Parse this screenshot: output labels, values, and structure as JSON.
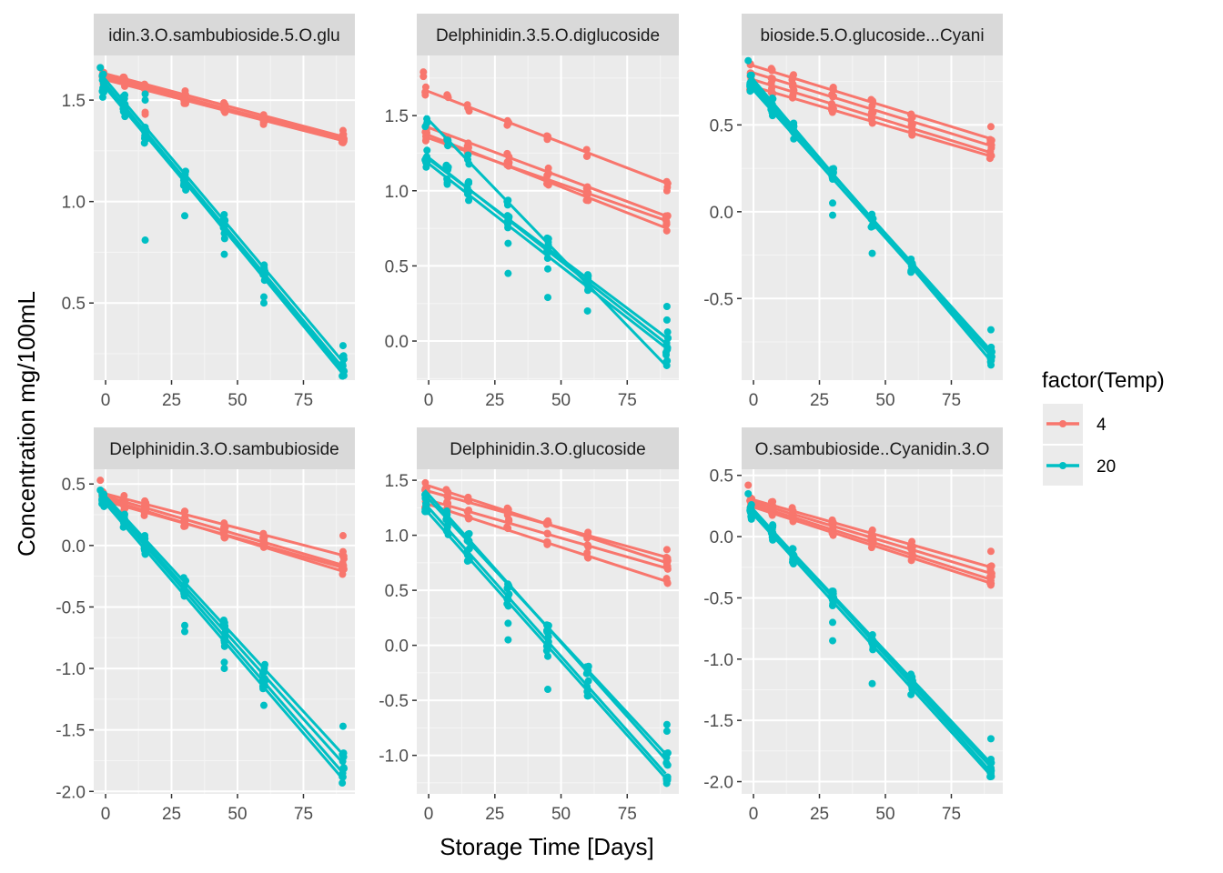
{
  "chart_data": {
    "type": "scatter",
    "xlabel": "Storage Time [Days]",
    "ylabel": "Concentration mg/100mL",
    "x_days": [
      0,
      7,
      15,
      30,
      45,
      60,
      90
    ],
    "x_ticks": [
      0,
      25,
      50,
      75
    ],
    "legend": {
      "title": "factor(Temp)",
      "placement": "right",
      "entries": [
        {
          "label": "4",
          "color": "#F8766D"
        },
        {
          "label": "20",
          "color": "#00BFC4"
        }
      ]
    },
    "grid": true,
    "panels": [
      {
        "strip": "idin.3.O.sambubioside.5.O.glu",
        "ylim": [
          0.12,
          1.72
        ],
        "yticks": [
          {
            "v": 0.5,
            "label": "0.5"
          },
          {
            "v": 1.0,
            "label": "1.0"
          },
          {
            "v": 1.5,
            "label": "1.5"
          }
        ],
        "series": [
          {
            "temp": "4",
            "reps": [
              [
                1.62,
                1.3
              ],
              [
                1.61,
                1.31
              ],
              [
                1.6,
                1.3
              ],
              [
                1.63,
                1.32
              ]
            ],
            "jitter": 0.02,
            "extra": [
              [
                15,
                1.43
              ],
              [
                15,
                1.44
              ],
              [
                -2,
                1.66
              ],
              [
                90,
                1.35
              ]
            ]
          },
          {
            "temp": "20",
            "reps": [
              [
                1.58,
                0.18
              ],
              [
                1.56,
                0.17
              ],
              [
                1.6,
                0.21
              ],
              [
                1.57,
                0.15
              ]
            ],
            "jitter": 0.05,
            "extra": [
              [
                15,
                0.81
              ],
              [
                15,
                1.5
              ],
              [
                15,
                1.53
              ],
              [
                -2,
                1.66
              ],
              [
                30,
                0.93
              ],
              [
                45,
                0.74
              ],
              [
                60,
                0.5
              ],
              [
                60,
                0.53
              ],
              [
                90,
                0.29
              ]
            ]
          }
        ]
      },
      {
        "strip": "Delphinidin.3.5.O.diglucoside",
        "ylim": [
          -0.26,
          1.9
        ],
        "yticks": [
          {
            "v": 0.0,
            "label": "0.0"
          },
          {
            "v": 0.5,
            "label": "0.5"
          },
          {
            "v": 1.0,
            "label": "1.0"
          },
          {
            "v": 1.5,
            "label": "1.5"
          }
        ],
        "series": [
          {
            "temp": "4",
            "reps": [
              [
                1.66,
                1.05
              ],
              [
                1.42,
                0.83
              ],
              [
                1.37,
                0.75
              ],
              [
                1.35,
                0.8
              ]
            ],
            "jitter": 0.03,
            "extra": [
              [
                -2,
                1.76
              ],
              [
                -2,
                1.79
              ],
              [
                90,
                1.0
              ]
            ]
          },
          {
            "temp": "20",
            "reps": [
              [
                1.47,
                -0.17
              ],
              [
                1.21,
                0.02
              ],
              [
                1.22,
                -0.02
              ],
              [
                1.18,
                -0.05
              ]
            ],
            "jitter": 0.05,
            "extra": [
              [
                30,
                0.45
              ],
              [
                30,
                0.65
              ],
              [
                45,
                0.29
              ],
              [
                45,
                0.48
              ],
              [
                60,
                0.2
              ],
              [
                90,
                0.14
              ],
              [
                90,
                0.23
              ]
            ]
          }
        ]
      },
      {
        "strip": "bioside.5.O.glucoside...Cyani",
        "ylim": [
          -0.97,
          0.9
        ],
        "yticks": [
          {
            "v": -0.5,
            "label": "-0.5"
          },
          {
            "v": 0.0,
            "label": "0.0"
          },
          {
            "v": 0.5,
            "label": "0.5"
          }
        ],
        "series": [
          {
            "temp": "4",
            "reps": [
              [
                0.84,
                0.42
              ],
              [
                0.8,
                0.38
              ],
              [
                0.76,
                0.34
              ],
              [
                0.72,
                0.32
              ]
            ],
            "jitter": 0.02,
            "extra": [
              [
                90,
                0.49
              ]
            ]
          },
          {
            "temp": "20",
            "reps": [
              [
                0.76,
                -0.86
              ],
              [
                0.74,
                -0.82
              ],
              [
                0.7,
                -0.83
              ],
              [
                0.72,
                -0.8
              ]
            ],
            "jitter": 0.03,
            "extra": [
              [
                30,
                -0.02
              ],
              [
                30,
                0.05
              ],
              [
                45,
                -0.24
              ],
              [
                -2,
                0.87
              ],
              [
                90,
                -0.68
              ]
            ]
          }
        ]
      },
      {
        "strip": "Delphinidin.3.O.sambubioside",
        "ylim": [
          -2.02,
          0.62
        ],
        "yticks": [
          {
            "v": -2.0,
            "label": "-2.0"
          },
          {
            "v": -1.5,
            "label": "-1.5"
          },
          {
            "v": -1.0,
            "label": "-1.0"
          },
          {
            "v": -0.5,
            "label": "-0.5"
          },
          {
            "v": 0.0,
            "label": "0.0"
          },
          {
            "v": 0.5,
            "label": "0.5"
          }
        ],
        "series": [
          {
            "temp": "4",
            "reps": [
              [
                0.42,
                -0.08
              ],
              [
                0.4,
                -0.16
              ],
              [
                0.38,
                -0.21
              ],
              [
                0.36,
                -0.18
              ]
            ],
            "jitter": 0.03,
            "extra": [
              [
                -2,
                0.53
              ],
              [
                90,
                0.08
              ],
              [
                90,
                -0.05
              ]
            ]
          },
          {
            "temp": "20",
            "reps": [
              [
                0.4,
                -1.7
              ],
              [
                0.38,
                -1.77
              ],
              [
                0.37,
                -1.85
              ],
              [
                0.34,
                -1.9
              ]
            ],
            "jitter": 0.05,
            "extra": [
              [
                30,
                -0.65
              ],
              [
                30,
                -0.7
              ],
              [
                45,
                -0.95
              ],
              [
                45,
                -1.0
              ],
              [
                60,
                -1.3
              ],
              [
                90,
                -1.47
              ],
              [
                -2,
                0.45
              ]
            ]
          }
        ]
      },
      {
        "strip": "Delphinidin.3.O.glucoside",
        "ylim": [
          -1.35,
          1.6
        ],
        "yticks": [
          {
            "v": -1.0,
            "label": "-1.0"
          },
          {
            "v": -0.5,
            "label": "-0.5"
          },
          {
            "v": 0.0,
            "label": "0.0"
          },
          {
            "v": 0.5,
            "label": "0.5"
          },
          {
            "v": 1.0,
            "label": "1.0"
          },
          {
            "v": 1.5,
            "label": "1.5"
          }
        ],
        "series": [
          {
            "temp": "4",
            "reps": [
              [
                1.45,
                0.75
              ],
              [
                1.4,
                0.8
              ],
              [
                1.32,
                0.7
              ],
              [
                1.28,
                0.58
              ]
            ],
            "jitter": 0.03,
            "extra": [
              [
                90,
                0.87
              ]
            ]
          },
          {
            "temp": "20",
            "reps": [
              [
                1.37,
                -1.05
              ],
              [
                1.33,
                -1.0
              ],
              [
                1.25,
                -1.18
              ],
              [
                1.2,
                -1.22
              ]
            ],
            "jitter": 0.05,
            "extra": [
              [
                30,
                0.05
              ],
              [
                30,
                0.2
              ],
              [
                45,
                -0.4
              ],
              [
                45,
                -0.1
              ],
              [
                90,
                -0.72
              ],
              [
                90,
                -0.78
              ]
            ]
          }
        ]
      },
      {
        "strip": "O.sambubioside..Cyanidin.3.O",
        "ylim": [
          -2.1,
          0.55
        ],
        "yticks": [
          {
            "v": -2.0,
            "label": "-2.0"
          },
          {
            "v": -1.5,
            "label": "-1.5"
          },
          {
            "v": -1.0,
            "label": "-1.0"
          },
          {
            "v": -0.5,
            "label": "-0.5"
          },
          {
            "v": 0.0,
            "label": "0.0"
          },
          {
            "v": 0.5,
            "label": "0.5"
          }
        ],
        "series": [
          {
            "temp": "4",
            "reps": [
              [
                0.3,
                -0.25
              ],
              [
                0.28,
                -0.3
              ],
              [
                0.26,
                -0.35
              ],
              [
                0.24,
                -0.38
              ]
            ],
            "jitter": 0.03,
            "extra": [
              [
                -2,
                0.42
              ],
              [
                90,
                -0.12
              ]
            ]
          },
          {
            "temp": "20",
            "reps": [
              [
                0.22,
                -1.92
              ],
              [
                0.2,
                -1.88
              ],
              [
                0.18,
                -1.95
              ],
              [
                0.21,
                -1.85
              ]
            ],
            "jitter": 0.05,
            "extra": [
              [
                30,
                -0.7
              ],
              [
                30,
                -0.85
              ],
              [
                45,
                -1.2
              ],
              [
                15,
                -0.1
              ],
              [
                90,
                -1.65
              ],
              [
                -2,
                0.35
              ]
            ]
          }
        ]
      }
    ]
  }
}
